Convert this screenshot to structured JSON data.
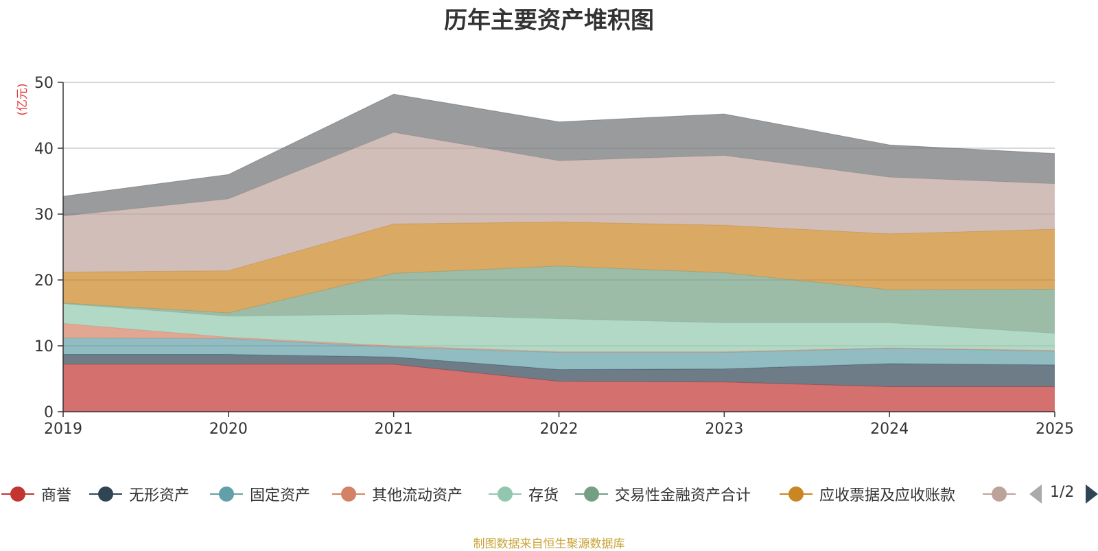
{
  "chart_data": {
    "type": "area",
    "stacked": true,
    "title": "历年主要资产堆积图",
    "ylabel": "(亿元)",
    "xlabel": "",
    "ylim": [
      0,
      50
    ],
    "yticks": [
      0,
      10,
      20,
      30,
      40,
      50
    ],
    "categories": [
      "2019",
      "2020",
      "2021",
      "2022",
      "2023",
      "2024",
      "2025"
    ],
    "series": [
      {
        "name": "商誉",
        "color": "#c23531",
        "values": [
          7.2,
          7.2,
          7.2,
          4.6,
          4.5,
          3.8,
          3.8
        ]
      },
      {
        "name": "无形资产",
        "color": "#2f4554",
        "values": [
          1.5,
          1.5,
          1.1,
          1.8,
          2.0,
          3.5,
          3.3
        ]
      },
      {
        "name": "固定资产",
        "color": "#61a0a8",
        "values": [
          2.5,
          2.4,
          1.5,
          2.6,
          2.5,
          2.3,
          2.1
        ]
      },
      {
        "name": "其他流动资产",
        "color": "#d48265",
        "values": [
          2.2,
          0.2,
          0.2,
          0.1,
          0.1,
          0.1,
          0.1
        ]
      },
      {
        "name": "存货",
        "color": "#91c7ae",
        "values": [
          3.0,
          3.2,
          4.8,
          5.0,
          4.4,
          3.8,
          2.6
        ]
      },
      {
        "name": "交易性金融资产合计",
        "color": "#749f83",
        "values": [
          0.1,
          0.5,
          6.2,
          8.0,
          7.6,
          5.0,
          6.7
        ]
      },
      {
        "name": "应收票据及应收账款",
        "color": "#ca8622",
        "values": [
          4.7,
          6.4,
          7.5,
          6.7,
          7.2,
          8.5,
          9.1
        ]
      },
      {
        "name": "",
        "color": "#bda29a",
        "values": [
          8.5,
          10.9,
          13.9,
          9.3,
          10.6,
          8.6,
          6.9
        ]
      },
      {
        "name": "",
        "color": "#6e7074",
        "values": [
          3.0,
          3.7,
          5.8,
          5.9,
          6.3,
          4.9,
          4.6
        ]
      }
    ]
  },
  "legend": {
    "items": [
      "商誉",
      "无形资产",
      "固定资产",
      "其他流动资产",
      "存货",
      "交易性金融资产合计",
      "应收票据及应收账款",
      ""
    ],
    "page": "1/2"
  },
  "footer": {
    "source": "制图数据来自恒生聚源数据库"
  }
}
